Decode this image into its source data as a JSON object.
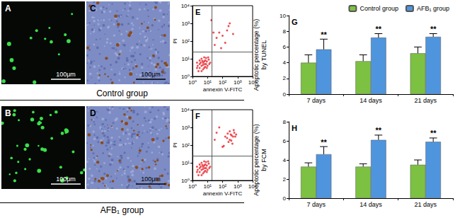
{
  "images": [
    {
      "label": "A",
      "scale_bar": "100μm"
    },
    {
      "label": "B",
      "scale_bar": "100μm"
    },
    {
      "label": "C",
      "scale_bar": "100μm"
    },
    {
      "label": "D",
      "scale_bar": "100μm"
    }
  ],
  "group_labels": [
    "Control group",
    "AFB₁ group"
  ],
  "chart_data": [
    {
      "type": "scatter",
      "panel": "E",
      "x_label": "annexin V-FITC",
      "y_label": "PI",
      "log": true,
      "grid": false,
      "color": "#e8262d",
      "xlim": [
        1,
        10000
      ],
      "ylim": [
        1,
        10000
      ],
      "xticks": [
        {
          "value": 1,
          "label": "10⁰"
        },
        {
          "value": 10,
          "label": "10¹"
        },
        {
          "value": 100,
          "label": "10²"
        },
        {
          "value": 1000,
          "label": "10³"
        },
        {
          "value": 10000,
          "label": "10⁴"
        }
      ],
      "yticks": [
        {
          "value": 1,
          "label": "10⁰"
        },
        {
          "value": 10,
          "label": "10¹"
        },
        {
          "value": 100,
          "label": "10²"
        },
        {
          "value": 1000,
          "label": "10³"
        },
        {
          "value": 10000,
          "label": "10⁴"
        }
      ],
      "gates": {
        "x": 20,
        "y": 25
      },
      "x": [
        2,
        3,
        4,
        5,
        6,
        7,
        8,
        3,
        2.5,
        4,
        6,
        9,
        10,
        12,
        5,
        3.5,
        7,
        2,
        15,
        8,
        4,
        6,
        11,
        3,
        5,
        2.2,
        4.5,
        9,
        6.5,
        13,
        40,
        60,
        100,
        200,
        30,
        150,
        300,
        80,
        25,
        500,
        18,
        250
      ],
      "values": [
        3,
        5,
        4,
        6,
        3,
        8,
        5,
        8,
        2,
        10,
        12,
        7,
        4,
        9,
        2.5,
        6,
        3.5,
        6,
        6,
        11,
        2,
        7,
        12,
        3,
        4.5,
        4,
        7.5,
        3,
        5,
        5,
        150,
        300,
        200,
        400,
        60,
        80,
        1000,
        40,
        300,
        250,
        1500,
        700
      ]
    },
    {
      "type": "scatter",
      "panel": "F",
      "x_label": "annexin V-FITC",
      "y_label": "PI",
      "log": true,
      "grid": false,
      "color": "#e8262d",
      "xlim": [
        1,
        10000
      ],
      "ylim": [
        1,
        10000
      ],
      "xticks": [
        {
          "value": 1,
          "label": "10⁰"
        },
        {
          "value": 10,
          "label": "10¹"
        },
        {
          "value": 100,
          "label": "10²"
        },
        {
          "value": 1000,
          "label": "10³"
        },
        {
          "value": 10000,
          "label": "10⁴"
        }
      ],
      "yticks": [
        {
          "value": 1,
          "label": "10⁰"
        },
        {
          "value": 10,
          "label": "10¹"
        },
        {
          "value": 100,
          "label": "10²"
        },
        {
          "value": 1000,
          "label": "10³"
        },
        {
          "value": 10000,
          "label": "10⁴"
        }
      ],
      "gates": {
        "x": 20,
        "y": 25
      },
      "x": [
        2,
        3,
        4,
        5,
        6,
        7,
        8,
        3,
        2.5,
        4,
        6,
        9,
        10,
        12,
        5,
        3.5,
        7,
        2,
        15,
        8,
        4,
        6,
        11,
        3,
        5,
        2.2,
        4.5,
        9,
        6.5,
        13,
        300,
        400,
        500,
        250,
        600,
        350,
        200,
        450,
        150,
        800,
        100,
        300,
        40,
        30,
        60,
        700,
        550,
        380,
        220,
        120
      ],
      "values": [
        3,
        5,
        4,
        6,
        3,
        8,
        5,
        8,
        2,
        10,
        12,
        7,
        4,
        9,
        2.5,
        6,
        3.5,
        6,
        6,
        11,
        2,
        7,
        12,
        3,
        4.5,
        4,
        7.5,
        3,
        5,
        5,
        200,
        350,
        300,
        150,
        500,
        400,
        250,
        120,
        300,
        400,
        80,
        600,
        500,
        200,
        1000,
        300,
        700,
        180,
        450,
        90
      ]
    },
    {
      "type": "bar",
      "panel": "G",
      "y_label": "Apoptotic percentage (%)\nby TUNEL",
      "grid": false,
      "legend": "top",
      "categories": [
        "7 days",
        "14 days",
        "21 days"
      ],
      "ylim": [
        0,
        10
      ],
      "yticks": [
        0,
        2,
        4,
        6,
        8,
        10
      ],
      "series": [
        {
          "name": "Control group",
          "color": "#7dc142",
          "values": [
            4.0,
            4.2,
            5.2
          ],
          "errors": [
            1.0,
            0.8,
            0.8
          ]
        },
        {
          "name": "AFB₁ group",
          "color": "#4f95dd",
          "values": [
            5.7,
            7.2,
            7.3
          ],
          "errors": [
            1.3,
            0.5,
            0.4
          ],
          "annotations": [
            "**",
            "**",
            "**"
          ]
        }
      ]
    },
    {
      "type": "bar",
      "panel": "H",
      "y_label": "Apoptotic percentage (%)\nby FCM",
      "grid": false,
      "categories": [
        "7 days",
        "14 days",
        "21 days"
      ],
      "ylim": [
        0,
        8
      ],
      "yticks": [
        0,
        2,
        4,
        6,
        8
      ],
      "series": [
        {
          "name": "Control group",
          "color": "#7dc142",
          "values": [
            3.3,
            3.3,
            3.5
          ],
          "errors": [
            0.4,
            0.3,
            0.5
          ]
        },
        {
          "name": "AFB₁ group",
          "color": "#4f95dd",
          "values": [
            4.6,
            6.1,
            5.9
          ],
          "errors": [
            0.8,
            0.5,
            0.4
          ],
          "annotations": [
            "**",
            "**",
            "**"
          ]
        }
      ]
    }
  ]
}
